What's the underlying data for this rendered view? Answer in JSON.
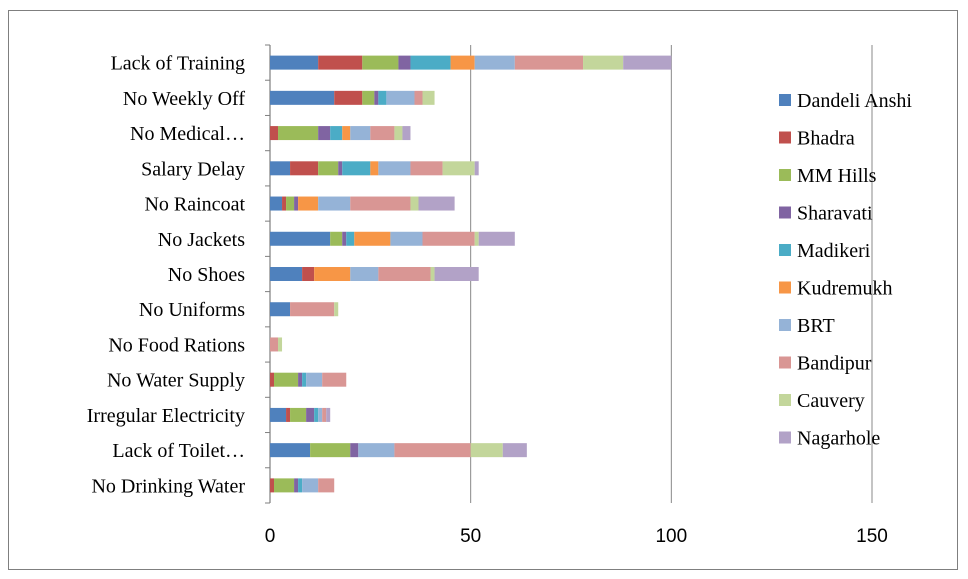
{
  "chart_data": {
    "type": "bar",
    "orientation": "horizontal",
    "stacked": true,
    "title": "",
    "xlabel": "",
    "ylabel": "",
    "xlim": [
      0,
      150
    ],
    "xticks": [
      0,
      50,
      100,
      150
    ],
    "grid": "vertical",
    "legend_position": "right",
    "categories": [
      "Lack of Training",
      "No Weekly Off",
      "No Medical…",
      "Salary Delay",
      "No Raincoat",
      "No Jackets",
      "No Shoes",
      "No Uniforms",
      "No Food Rations",
      "No Water Supply",
      "Irregular Electricity",
      "Lack of Toilet…",
      "No Drinking Water"
    ],
    "series": [
      {
        "name": "Dandeli Anshi",
        "color": "#4f81bd",
        "values": [
          12,
          16,
          0,
          5,
          3,
          15,
          8,
          5,
          0,
          0,
          4,
          10,
          0
        ]
      },
      {
        "name": "Bhadra",
        "color": "#c0504d",
        "values": [
          11,
          7,
          2,
          7,
          1,
          0,
          3,
          0,
          0,
          1,
          1,
          0,
          1
        ]
      },
      {
        "name": "MM Hills",
        "color": "#9bbb59",
        "values": [
          9,
          3,
          10,
          5,
          2,
          3,
          0,
          0,
          0,
          6,
          4,
          10,
          5
        ]
      },
      {
        "name": "Sharavati",
        "color": "#8064a2",
        "values": [
          3,
          1,
          3,
          1,
          1,
          1,
          0,
          0,
          0,
          1,
          2,
          2,
          1
        ]
      },
      {
        "name": "Madikeri",
        "color": "#4bacc6",
        "values": [
          10,
          2,
          3,
          7,
          0,
          2,
          0,
          0,
          0,
          1,
          1,
          0,
          1
        ]
      },
      {
        "name": "Kudremukh",
        "color": "#f79646",
        "values": [
          6,
          0,
          2,
          2,
          5,
          9,
          9,
          0,
          0,
          0,
          0,
          0,
          0
        ]
      },
      {
        "name": "BRT",
        "color": "#95b3d7",
        "values": [
          10,
          7,
          5,
          8,
          8,
          8,
          7,
          0,
          0,
          4,
          1,
          9,
          4
        ]
      },
      {
        "name": "Bandipur",
        "color": "#d99694",
        "values": [
          17,
          2,
          6,
          8,
          15,
          13,
          13,
          11,
          2,
          6,
          1,
          19,
          4
        ]
      },
      {
        "name": "Cauvery",
        "color": "#c3d69b",
        "values": [
          10,
          3,
          2,
          8,
          2,
          1,
          1,
          1,
          1,
          0,
          0,
          8,
          0
        ]
      },
      {
        "name": "Nagarhole",
        "color": "#b2a2c7",
        "values": [
          12,
          0,
          2,
          1,
          9,
          9,
          11,
          0,
          0,
          0,
          1,
          6,
          0
        ]
      }
    ]
  }
}
